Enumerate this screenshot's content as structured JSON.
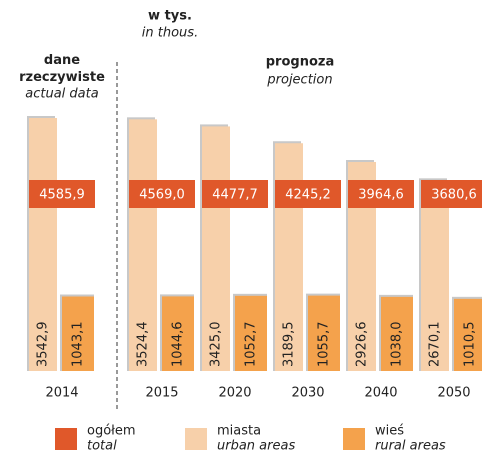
{
  "chart_data": {
    "type": "bar",
    "unit_label": "w tys.",
    "unit_label_en": "in thous.",
    "actual_label": "dane rzeczywiste",
    "actual_label_en": "actual data",
    "projection_label": "prognoza",
    "projection_label_en": "projection",
    "categories": [
      "2014",
      "2015",
      "2020",
      "2030",
      "2040",
      "2050"
    ],
    "series": [
      {
        "name": "ogółem",
        "name_en": "total",
        "color": "#e0582a",
        "values": [
          4585.9,
          4569.0,
          4477.7,
          4245.2,
          3964.6,
          3680.6
        ],
        "value_labels": [
          "4585,9",
          "4569,0",
          "4477,7",
          "4245,2",
          "3964,6",
          "3680,6"
        ]
      },
      {
        "name": "miasta",
        "name_en": "urban areas",
        "color": "#f7d0aa",
        "values": [
          3542.9,
          3524.4,
          3425.0,
          3189.5,
          2926.6,
          2670.1
        ],
        "value_labels": [
          "3542,9",
          "3524,4",
          "3425,0",
          "3189,5",
          "2926,6",
          "2670,1"
        ]
      },
      {
        "name": "wieś",
        "name_en": "rural areas",
        "color": "#f4a24c",
        "values": [
          1043.1,
          1044.6,
          1052.7,
          1055.7,
          1038.0,
          1010.5
        ],
        "value_labels": [
          "1043,1",
          "1044,6",
          "1052,7",
          "1055,7",
          "1038,0",
          "1010,5"
        ]
      }
    ]
  }
}
